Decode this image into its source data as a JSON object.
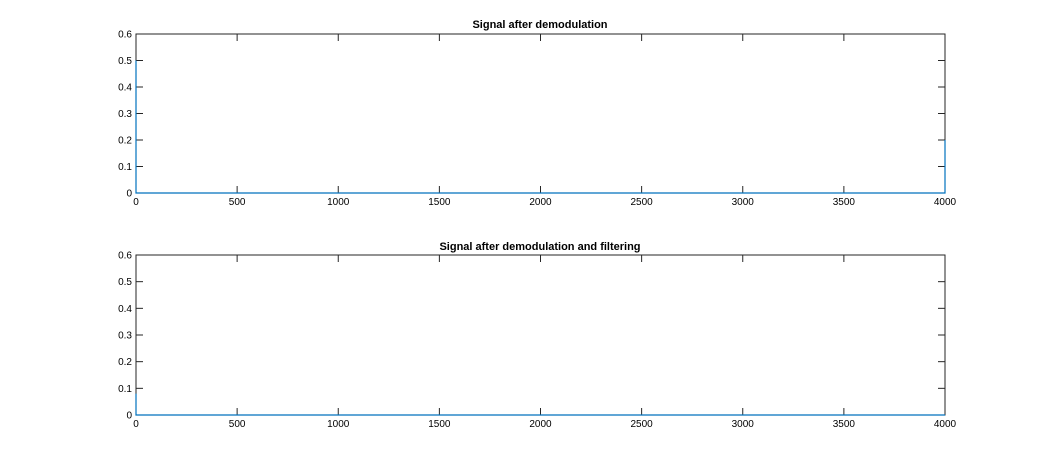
{
  "chart_data": [
    {
      "type": "line",
      "title": "Signal after demodulation",
      "xlim": [
        0,
        4000
      ],
      "ylim": [
        0,
        0.6
      ],
      "x_ticks": [
        0,
        500,
        1000,
        1500,
        2000,
        2500,
        3000,
        3500,
        4000
      ],
      "y_ticks": [
        0,
        0.1,
        0.2,
        0.3,
        0.4,
        0.5,
        0.6
      ],
      "x_tick_labels": [
        "0",
        "500",
        "1000",
        "1500",
        "2000",
        "2500",
        "3000",
        "3500",
        "4000"
      ],
      "y_tick_labels": [
        "0",
        "0.1",
        "0.2",
        "0.3",
        "0.4",
        "0.5",
        "0.6"
      ],
      "grid": false,
      "series": [
        {
          "color": "#0072bd",
          "x": [
            0,
            0,
            2,
            3990,
            3999,
            4000,
            4000
          ],
          "y": [
            0.5,
            0.0,
            0.0,
            0.0,
            0.0,
            0.0,
            0.2
          ]
        }
      ]
    },
    {
      "type": "line",
      "title": "Signal after demodulation and filtering",
      "xlim": [
        0,
        4000
      ],
      "ylim": [
        0,
        0.6
      ],
      "x_ticks": [
        0,
        500,
        1000,
        1500,
        2000,
        2500,
        3000,
        3500,
        4000
      ],
      "y_ticks": [
        0,
        0.1,
        0.2,
        0.3,
        0.4,
        0.5,
        0.6
      ],
      "x_tick_labels": [
        "0",
        "500",
        "1000",
        "1500",
        "2000",
        "2500",
        "3000",
        "3500",
        "4000"
      ],
      "y_tick_labels": [
        "0",
        "0.1",
        "0.2",
        "0.3",
        "0.4",
        "0.5",
        "0.6"
      ],
      "grid": false,
      "series": [
        {
          "color": "#0072bd",
          "x": [
            0,
            0,
            2,
            4000
          ],
          "y": [
            0.08,
            0.0,
            0.0,
            0.0
          ]
        }
      ]
    }
  ]
}
